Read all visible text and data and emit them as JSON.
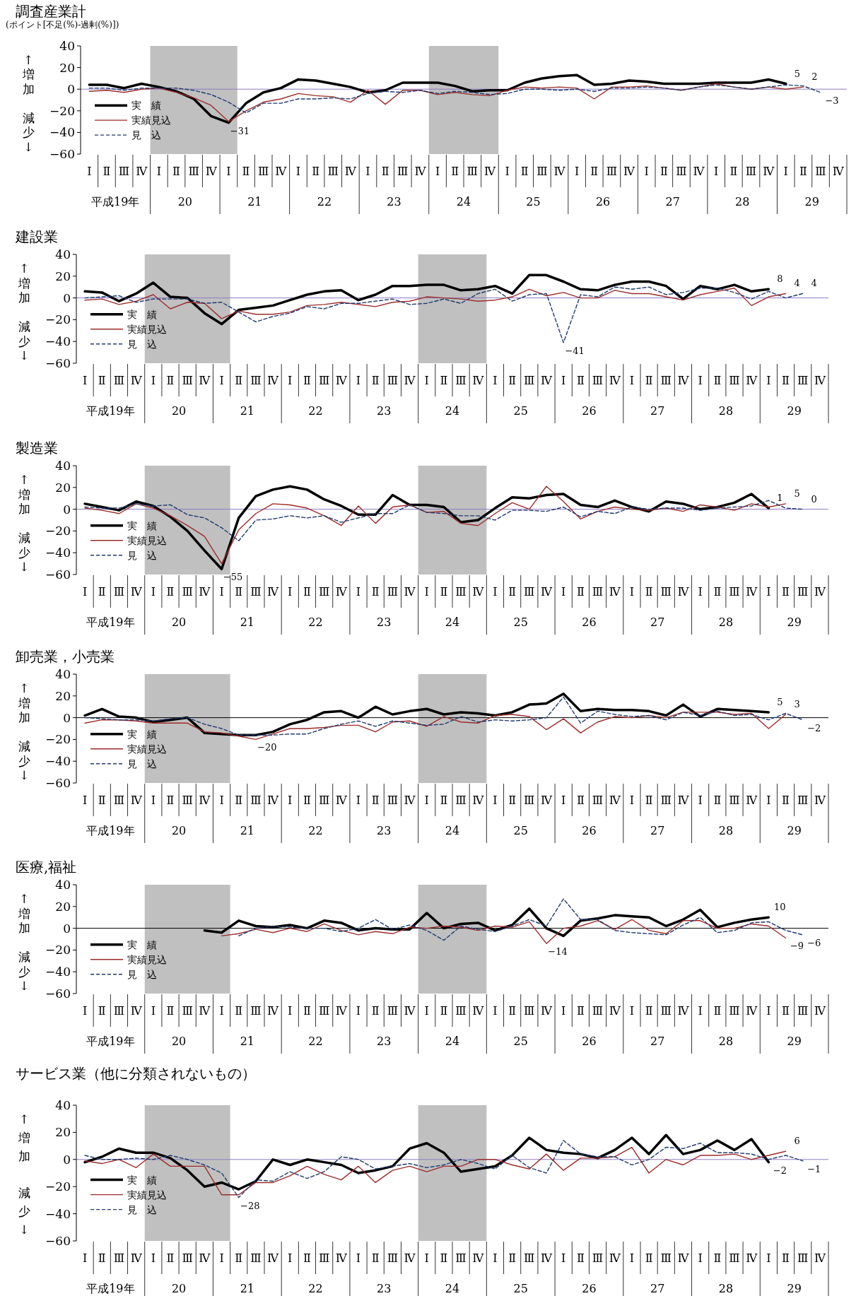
{
  "chart_data": [
    {
      "type": "line",
      "title": "調査産業計",
      "subtitle": "(ポイント[不足(%)-過剰(%)])",
      "ylabel": "↑増加減少↓",
      "categories": [
        "Ⅰ",
        "Ⅱ",
        "Ⅲ",
        "Ⅳ",
        "Ⅰ",
        "Ⅱ",
        "Ⅲ",
        "Ⅳ",
        "Ⅰ",
        "Ⅱ",
        "Ⅲ",
        "Ⅳ",
        "Ⅰ",
        "Ⅱ",
        "Ⅲ",
        "Ⅳ",
        "Ⅰ",
        "Ⅱ",
        "Ⅲ",
        "Ⅳ",
        "Ⅰ",
        "Ⅱ",
        "Ⅲ",
        "Ⅳ",
        "Ⅰ",
        "Ⅱ",
        "Ⅲ",
        "Ⅳ",
        "Ⅰ",
        "Ⅱ",
        "Ⅲ",
        "Ⅳ",
        "Ⅰ",
        "Ⅱ",
        "Ⅲ",
        "Ⅳ",
        "Ⅰ",
        "Ⅱ",
        "Ⅲ",
        "Ⅳ",
        "Ⅰ",
        "Ⅱ",
        "Ⅲ",
        "Ⅳ"
      ],
      "annotations": [
        "平成19年",
        "20",
        "21",
        "22",
        "23",
        "24",
        "25",
        "26",
        "27",
        "28",
        "29"
      ],
      "ylim": [
        -60,
        40
      ],
      "yticks": [
        -60,
        -40,
        -20,
        0,
        20,
        40
      ],
      "legend": "bottom left",
      "ref_lines": [
        {
          "axis": "y",
          "value": 0,
          "color": "#8e7cc3"
        }
      ],
      "series": [
        {
          "name": "実　績",
          "color": "#000000",
          "line_style": "solid",
          "values": [
            4,
            4,
            1,
            5,
            2,
            -2,
            -9,
            -25,
            -31,
            -13,
            -3,
            1,
            9,
            8,
            5,
            2,
            -3,
            -1,
            6,
            6,
            6,
            3,
            -2,
            -1,
            -1,
            6,
            10,
            12,
            13,
            4,
            5,
            8,
            7,
            5,
            5,
            5,
            6,
            6,
            6,
            9,
            5,
            null,
            null,
            null
          ],
          "value_labels": [
            null,
            null,
            null,
            null,
            null,
            null,
            null,
            null,
            "−31",
            null,
            null,
            null,
            null,
            null,
            null,
            null,
            null,
            null,
            null,
            null,
            null,
            null,
            null,
            null,
            null,
            null,
            null,
            null,
            null,
            null,
            null,
            null,
            null,
            null,
            null,
            null,
            null,
            null,
            null,
            null,
            "5",
            null,
            null,
            null
          ]
        },
        {
          "name": "実績見込",
          "color": "#9b2d2a",
          "line_style": "solid",
          "values": [
            -2,
            -1,
            -3,
            0,
            1,
            -3,
            -8,
            -15,
            -30,
            -20,
            -12,
            -9,
            -4,
            -6,
            -7,
            -12,
            -1,
            -14,
            -1,
            -1,
            -5,
            -3,
            -5,
            -6,
            -1,
            2,
            1,
            2,
            1,
            -9,
            2,
            2,
            3,
            1,
            -1,
            2,
            5,
            2,
            0,
            2,
            0,
            2,
            null,
            null
          ],
          "value_labels": [
            null,
            null,
            null,
            null,
            null,
            null,
            null,
            null,
            null,
            null,
            null,
            null,
            null,
            null,
            null,
            null,
            null,
            null,
            null,
            null,
            null,
            null,
            null,
            null,
            null,
            null,
            null,
            null,
            null,
            null,
            null,
            null,
            null,
            null,
            null,
            null,
            null,
            null,
            null,
            null,
            null,
            "2",
            null,
            null
          ]
        },
        {
          "name": "見　込",
          "color": "#1f3a6e",
          "line_style": "dashed",
          "values": [
            1,
            1,
            -1,
            1,
            1,
            1,
            -1,
            -5,
            -12,
            -22,
            -13,
            -13,
            -9,
            -9,
            -8,
            -9,
            -4,
            -2,
            -3,
            -1,
            -4,
            -2,
            -3,
            -5,
            -4,
            0,
            0,
            -1,
            0,
            -2,
            1,
            1,
            2,
            1,
            -1,
            2,
            4,
            2,
            0,
            2,
            4,
            3,
            -3,
            null
          ],
          "value_labels": [
            null,
            null,
            null,
            null,
            null,
            null,
            null,
            null,
            null,
            null,
            null,
            null,
            null,
            null,
            null,
            null,
            null,
            null,
            null,
            null,
            null,
            null,
            null,
            null,
            null,
            null,
            null,
            null,
            null,
            null,
            null,
            null,
            null,
            null,
            null,
            null,
            null,
            null,
            null,
            null,
            null,
            null,
            "−3",
            null
          ]
        }
      ]
    },
    {
      "type": "line",
      "title": "建設業",
      "ylabel": "↑増加減少↓",
      "categories": [
        "Ⅰ",
        "Ⅱ",
        "Ⅲ",
        "Ⅳ",
        "Ⅰ",
        "Ⅱ",
        "Ⅲ",
        "Ⅳ",
        "Ⅰ",
        "Ⅱ",
        "Ⅲ",
        "Ⅳ",
        "Ⅰ",
        "Ⅱ",
        "Ⅲ",
        "Ⅳ",
        "Ⅰ",
        "Ⅱ",
        "Ⅲ",
        "Ⅳ",
        "Ⅰ",
        "Ⅱ",
        "Ⅲ",
        "Ⅳ",
        "Ⅰ",
        "Ⅱ",
        "Ⅲ",
        "Ⅳ",
        "Ⅰ",
        "Ⅱ",
        "Ⅲ",
        "Ⅳ",
        "Ⅰ",
        "Ⅱ",
        "Ⅲ",
        "Ⅳ",
        "Ⅰ",
        "Ⅱ",
        "Ⅲ",
        "Ⅳ",
        "Ⅰ",
        "Ⅱ",
        "Ⅲ",
        "Ⅳ"
      ],
      "annotations": [
        "平成19年",
        "20",
        "21",
        "22",
        "23",
        "24",
        "25",
        "26",
        "27",
        "28",
        "29"
      ],
      "ylim": [
        -60,
        40
      ],
      "yticks": [
        -60,
        -40,
        -20,
        0,
        20,
        40
      ],
      "legend": "bottom left",
      "ref_lines": [
        {
          "axis": "y",
          "value": 0,
          "color": "#8e7cc3"
        }
      ],
      "series": [
        {
          "name": "実　績",
          "color": "#000000",
          "line_style": "solid",
          "values": [
            6,
            5,
            -3,
            4,
            14,
            1,
            0,
            -14,
            -24,
            -11,
            -9,
            -7,
            -2,
            3,
            6,
            7,
            -2,
            3,
            11,
            11,
            12,
            12,
            7,
            8,
            11,
            4,
            21,
            21,
            15,
            8,
            7,
            12,
            15,
            15,
            11,
            -1,
            11,
            8,
            12,
            6,
            8,
            null,
            null,
            null
          ],
          "value_labels": [
            null,
            null,
            null,
            null,
            null,
            null,
            null,
            null,
            null,
            null,
            null,
            null,
            null,
            null,
            null,
            null,
            null,
            null,
            null,
            null,
            null,
            null,
            null,
            null,
            null,
            null,
            null,
            null,
            null,
            null,
            null,
            null,
            null,
            null,
            null,
            null,
            null,
            null,
            null,
            null,
            "8",
            null,
            null,
            null
          ]
        },
        {
          "name": "実績見込",
          "color": "#9b2d2a",
          "line_style": "solid",
          "values": [
            -2,
            -1,
            -6,
            -3,
            3,
            -10,
            -4,
            -5,
            -19,
            -12,
            -15,
            -15,
            -13,
            -7,
            -6,
            -4,
            -6,
            -8,
            -4,
            -3,
            1,
            0,
            -1,
            -3,
            -2,
            1,
            8,
            2,
            5,
            0,
            0,
            7,
            4,
            4,
            1,
            -2,
            3,
            6,
            9,
            -7,
            1,
            4,
            null,
            null
          ],
          "value_labels": [
            null,
            null,
            null,
            null,
            null,
            null,
            null,
            null,
            null,
            null,
            null,
            null,
            null,
            null,
            null,
            null,
            null,
            null,
            null,
            null,
            null,
            null,
            null,
            null,
            null,
            null,
            null,
            null,
            null,
            null,
            null,
            null,
            null,
            null,
            null,
            null,
            null,
            null,
            null,
            null,
            null,
            "4",
            null,
            null
          ]
        },
        {
          "name": "見　込",
          "color": "#1f3a6e",
          "line_style": "dashed",
          "values": [
            0,
            1,
            2,
            -4,
            -1,
            -1,
            -1,
            -5,
            -4,
            -13,
            -22,
            -17,
            -14,
            -8,
            -10,
            -5,
            -5,
            -3,
            -1,
            -6,
            -5,
            -1,
            -5,
            4,
            8,
            -3,
            3,
            4,
            -41,
            3,
            1,
            10,
            8,
            10,
            3,
            5,
            9,
            9,
            5,
            -1,
            6,
            0,
            4,
            null
          ],
          "value_labels": [
            null,
            null,
            null,
            null,
            null,
            null,
            null,
            null,
            null,
            null,
            null,
            null,
            null,
            null,
            null,
            null,
            null,
            null,
            null,
            null,
            null,
            null,
            null,
            null,
            null,
            null,
            null,
            null,
            "−41",
            null,
            null,
            null,
            null,
            null,
            null,
            null,
            null,
            null,
            null,
            null,
            null,
            null,
            "4",
            null
          ]
        }
      ]
    },
    {
      "type": "line",
      "title": "製造業",
      "ylabel": "↑増加減少↓",
      "categories": [
        "Ⅰ",
        "Ⅱ",
        "Ⅲ",
        "Ⅳ",
        "Ⅰ",
        "Ⅱ",
        "Ⅲ",
        "Ⅳ",
        "Ⅰ",
        "Ⅱ",
        "Ⅲ",
        "Ⅳ",
        "Ⅰ",
        "Ⅱ",
        "Ⅲ",
        "Ⅳ",
        "Ⅰ",
        "Ⅱ",
        "Ⅲ",
        "Ⅳ",
        "Ⅰ",
        "Ⅱ",
        "Ⅲ",
        "Ⅳ",
        "Ⅰ",
        "Ⅱ",
        "Ⅲ",
        "Ⅳ",
        "Ⅰ",
        "Ⅱ",
        "Ⅲ",
        "Ⅳ",
        "Ⅰ",
        "Ⅱ",
        "Ⅲ",
        "Ⅳ",
        "Ⅰ",
        "Ⅱ",
        "Ⅲ",
        "Ⅳ",
        "Ⅰ",
        "Ⅱ",
        "Ⅲ",
        "Ⅳ"
      ],
      "annotations": [
        "平成19年",
        "20",
        "21",
        "22",
        "23",
        "24",
        "25",
        "26",
        "27",
        "28",
        "29"
      ],
      "ylim": [
        -60,
        40
      ],
      "yticks": [
        -60,
        -40,
        -20,
        0,
        20,
        40
      ],
      "legend": "bottom left",
      "ref_lines": [
        {
          "axis": "y",
          "value": 0,
          "color": "#8e7cc3"
        }
      ],
      "series": [
        {
          "name": "実　績",
          "color": "#000000",
          "line_style": "solid",
          "values": [
            5,
            2,
            -1,
            7,
            3,
            -7,
            -20,
            -38,
            -55,
            -8,
            12,
            18,
            21,
            18,
            9,
            3,
            -5,
            -5,
            13,
            4,
            4,
            2,
            -12,
            -10,
            1,
            11,
            10,
            13,
            14,
            4,
            2,
            8,
            2,
            -2,
            7,
            5,
            0,
            2,
            6,
            14,
            1,
            null,
            null,
            null
          ],
          "value_labels": [
            null,
            null,
            null,
            null,
            null,
            null,
            null,
            null,
            "−55",
            null,
            null,
            null,
            null,
            null,
            null,
            null,
            null,
            null,
            null,
            null,
            null,
            null,
            null,
            null,
            null,
            null,
            null,
            null,
            null,
            null,
            null,
            null,
            null,
            null,
            null,
            null,
            null,
            null,
            null,
            null,
            "1",
            null,
            null,
            null
          ]
        },
        {
          "name": "実績見込",
          "color": "#9b2d2a",
          "line_style": "solid",
          "values": [
            1,
            -1,
            -4,
            5,
            1,
            -6,
            -15,
            -25,
            -50,
            -19,
            -4,
            5,
            4,
            1,
            -6,
            -15,
            3,
            -13,
            2,
            4,
            -3,
            -2,
            -13,
            -15,
            -4,
            6,
            0,
            21,
            7,
            -9,
            -2,
            2,
            0,
            -1,
            1,
            -2,
            4,
            2,
            -1,
            5,
            2,
            5,
            null,
            null
          ],
          "value_labels": [
            null,
            null,
            null,
            null,
            null,
            null,
            null,
            null,
            null,
            null,
            null,
            null,
            null,
            null,
            null,
            null,
            null,
            null,
            null,
            null,
            null,
            null,
            null,
            null,
            null,
            null,
            null,
            null,
            null,
            null,
            null,
            null,
            null,
            null,
            null,
            null,
            null,
            null,
            null,
            null,
            null,
            "5",
            null,
            null
          ]
        },
        {
          "name": "見　込",
          "color": "#1f3a6e",
          "line_style": "dashed",
          "values": [
            2,
            1,
            1,
            5,
            3,
            4,
            -5,
            -8,
            -17,
            -29,
            -10,
            -9,
            -6,
            -8,
            -6,
            -12,
            -8,
            -4,
            -4,
            4,
            -3,
            -4,
            -6,
            -6,
            -10,
            -1,
            -1,
            -2,
            2,
            -7,
            -2,
            -4,
            2,
            0,
            1,
            1,
            -1,
            1,
            2,
            3,
            8,
            1,
            0,
            null
          ],
          "value_labels": [
            null,
            null,
            null,
            null,
            null,
            null,
            null,
            null,
            null,
            null,
            null,
            null,
            null,
            null,
            null,
            null,
            null,
            null,
            null,
            null,
            null,
            null,
            null,
            null,
            null,
            null,
            null,
            null,
            null,
            null,
            null,
            null,
            null,
            null,
            null,
            null,
            null,
            null,
            null,
            null,
            null,
            null,
            "0",
            null
          ]
        }
      ]
    },
    {
      "type": "line",
      "title": "卸売業，小売業",
      "ylabel": "↑増加減少↓",
      "categories": [
        "Ⅰ",
        "Ⅱ",
        "Ⅲ",
        "Ⅳ",
        "Ⅰ",
        "Ⅱ",
        "Ⅲ",
        "Ⅳ",
        "Ⅰ",
        "Ⅱ",
        "Ⅲ",
        "Ⅳ",
        "Ⅰ",
        "Ⅱ",
        "Ⅲ",
        "Ⅳ",
        "Ⅰ",
        "Ⅱ",
        "Ⅲ",
        "Ⅳ",
        "Ⅰ",
        "Ⅱ",
        "Ⅲ",
        "Ⅳ",
        "Ⅰ",
        "Ⅱ",
        "Ⅲ",
        "Ⅳ",
        "Ⅰ",
        "Ⅱ",
        "Ⅲ",
        "Ⅳ",
        "Ⅰ",
        "Ⅱ",
        "Ⅲ",
        "Ⅳ",
        "Ⅰ",
        "Ⅱ",
        "Ⅲ",
        "Ⅳ",
        "Ⅰ",
        "Ⅱ",
        "Ⅲ",
        "Ⅳ"
      ],
      "annotations": [
        "平成19年",
        "20",
        "21",
        "22",
        "23",
        "24",
        "25",
        "26",
        "27",
        "28",
        "29"
      ],
      "ylim": [
        -60,
        40
      ],
      "yticks": [
        -60,
        -40,
        -20,
        0,
        20,
        40
      ],
      "legend": "bottom left",
      "ref_lines": [
        {
          "axis": "y",
          "value": 0,
          "color": "#000000"
        }
      ],
      "series": [
        {
          "name": "実　績",
          "color": "#000000",
          "line_style": "solid",
          "values": [
            2,
            8,
            1,
            0,
            -4,
            -2,
            0,
            -14,
            -15,
            -16,
            -16,
            -13,
            -6,
            -2,
            5,
            6,
            0,
            10,
            3,
            6,
            8,
            3,
            5,
            4,
            2,
            5,
            12,
            13,
            22,
            6,
            8,
            7,
            7,
            6,
            2,
            12,
            1,
            8,
            7,
            6,
            5,
            null,
            null,
            null
          ],
          "value_labels": [
            null,
            null,
            null,
            null,
            null,
            null,
            null,
            null,
            null,
            null,
            null,
            null,
            null,
            null,
            null,
            null,
            null,
            null,
            null,
            null,
            null,
            null,
            null,
            null,
            null,
            null,
            null,
            null,
            null,
            null,
            null,
            null,
            null,
            null,
            null,
            null,
            null,
            null,
            null,
            null,
            "5",
            null,
            null,
            null
          ]
        },
        {
          "name": "実績見込",
          "color": "#9b2d2a",
          "line_style": "solid",
          "values": [
            -5,
            -2,
            -2,
            -3,
            -5,
            -5,
            -5,
            -13,
            -14,
            -17,
            -20,
            -15,
            -10,
            -10,
            -9,
            -7,
            -7,
            -13,
            -4,
            -3,
            -8,
            1,
            -4,
            -5,
            2,
            3,
            1,
            -11,
            -1,
            -14,
            -4,
            1,
            0,
            2,
            0,
            5,
            5,
            5,
            3,
            4,
            -10,
            3,
            null,
            null
          ],
          "value_labels": [
            null,
            null,
            null,
            null,
            null,
            null,
            null,
            null,
            null,
            null,
            "−20",
            null,
            null,
            null,
            null,
            null,
            null,
            null,
            null,
            null,
            null,
            null,
            null,
            null,
            null,
            null,
            null,
            null,
            null,
            null,
            null,
            null,
            null,
            null,
            null,
            null,
            null,
            null,
            null,
            null,
            null,
            "3",
            null,
            null
          ]
        },
        {
          "name": "見　込",
          "color": "#1f3a6e",
          "line_style": "dashed",
          "values": [
            0,
            -1,
            -2,
            -2,
            -3,
            -1,
            0,
            -6,
            -10,
            -16,
            -16,
            -16,
            -15,
            -15,
            -10,
            -6,
            -3,
            -8,
            -3,
            -5,
            -7,
            -6,
            1,
            -4,
            -2,
            -3,
            -2,
            0,
            19,
            -5,
            6,
            3,
            1,
            2,
            -2,
            5,
            2,
            6,
            2,
            3,
            -2,
            4,
            -2,
            null
          ],
          "value_labels": [
            null,
            null,
            null,
            null,
            null,
            null,
            null,
            null,
            null,
            null,
            null,
            null,
            null,
            null,
            null,
            null,
            null,
            null,
            null,
            null,
            null,
            null,
            null,
            null,
            null,
            null,
            null,
            null,
            null,
            null,
            null,
            null,
            null,
            null,
            null,
            null,
            null,
            null,
            null,
            null,
            null,
            null,
            "−2",
            null
          ]
        }
      ]
    },
    {
      "type": "line",
      "title": "医療,福祉",
      "ylabel": "↑増加減少↓",
      "categories": [
        "Ⅰ",
        "Ⅱ",
        "Ⅲ",
        "Ⅳ",
        "Ⅰ",
        "Ⅱ",
        "Ⅲ",
        "Ⅳ",
        "Ⅰ",
        "Ⅱ",
        "Ⅲ",
        "Ⅳ",
        "Ⅰ",
        "Ⅱ",
        "Ⅲ",
        "Ⅳ",
        "Ⅰ",
        "Ⅱ",
        "Ⅲ",
        "Ⅳ",
        "Ⅰ",
        "Ⅱ",
        "Ⅲ",
        "Ⅳ",
        "Ⅰ",
        "Ⅱ",
        "Ⅲ",
        "Ⅳ",
        "Ⅰ",
        "Ⅱ",
        "Ⅲ",
        "Ⅳ",
        "Ⅰ",
        "Ⅱ",
        "Ⅲ",
        "Ⅳ",
        "Ⅰ",
        "Ⅱ",
        "Ⅲ",
        "Ⅳ",
        "Ⅰ",
        "Ⅱ",
        "Ⅲ",
        "Ⅳ"
      ],
      "annotations": [
        "平成19年",
        "20",
        "21",
        "22",
        "23",
        "24",
        "25",
        "26",
        "27",
        "28",
        "29"
      ],
      "ylim": [
        -60,
        40
      ],
      "yticks": [
        -60,
        -40,
        -20,
        0,
        20,
        40
      ],
      "legend": "bottom left",
      "ref_lines": [
        {
          "axis": "y",
          "value": 0,
          "color": "#000000"
        }
      ],
      "series": [
        {
          "name": "実　績",
          "color": "#000000",
          "line_style": "solid",
          "values": [
            null,
            null,
            null,
            null,
            null,
            null,
            null,
            -2,
            -4,
            7,
            2,
            1,
            3,
            0,
            7,
            5,
            -2,
            0,
            -1,
            -1,
            14,
            0,
            4,
            5,
            -2,
            3,
            18,
            0,
            -7,
            7,
            9,
            12,
            11,
            10,
            2,
            8,
            17,
            1,
            5,
            8,
            10,
            null,
            null,
            null
          ],
          "value_labels": [
            null,
            null,
            null,
            null,
            null,
            null,
            null,
            null,
            null,
            null,
            null,
            null,
            null,
            null,
            null,
            null,
            null,
            null,
            null,
            null,
            null,
            null,
            null,
            null,
            null,
            null,
            null,
            null,
            null,
            null,
            null,
            null,
            null,
            null,
            null,
            null,
            null,
            null,
            null,
            null,
            "10",
            null,
            null,
            null
          ]
        },
        {
          "name": "実績見込",
          "color": "#9b2d2a",
          "line_style": "solid",
          "values": [
            null,
            null,
            null,
            null,
            null,
            null,
            null,
            null,
            -7,
            -5,
            -1,
            -4,
            0,
            -3,
            4,
            -2,
            -6,
            -3,
            -5,
            1,
            0,
            2,
            1,
            -2,
            2,
            1,
            6,
            -14,
            0,
            2,
            7,
            -1,
            8,
            -2,
            -5,
            7,
            7,
            0,
            0,
            4,
            2,
            -9,
            null,
            null
          ],
          "value_labels": [
            null,
            null,
            null,
            null,
            null,
            null,
            null,
            null,
            null,
            null,
            null,
            null,
            null,
            null,
            null,
            null,
            null,
            null,
            null,
            null,
            null,
            null,
            null,
            null,
            null,
            null,
            null,
            "−14",
            null,
            null,
            null,
            null,
            null,
            null,
            null,
            null,
            null,
            null,
            null,
            null,
            null,
            "−9",
            null,
            null
          ]
        },
        {
          "name": "見　込",
          "color": "#1f3a6e",
          "line_style": "dashed",
          "values": [
            null,
            null,
            null,
            null,
            null,
            null,
            null,
            null,
            null,
            -7,
            0,
            2,
            1,
            0,
            0,
            -3,
            0,
            8,
            -1,
            3,
            -2,
            -11,
            2,
            -1,
            -3,
            2,
            8,
            2,
            27,
            8,
            8,
            -2,
            -4,
            -5,
            -6,
            3,
            10,
            -4,
            -2,
            5,
            6,
            -2,
            -6,
            null
          ],
          "value_labels": [
            null,
            null,
            null,
            null,
            null,
            null,
            null,
            null,
            null,
            null,
            null,
            null,
            null,
            null,
            null,
            null,
            null,
            null,
            null,
            null,
            null,
            null,
            null,
            null,
            null,
            null,
            null,
            null,
            null,
            null,
            null,
            null,
            null,
            null,
            null,
            null,
            null,
            null,
            null,
            null,
            null,
            null,
            "−6",
            null
          ]
        }
      ]
    },
    {
      "type": "line",
      "title": "サービス業（他に分類されないもの）",
      "ylabel": "↑増加減少↓",
      "categories": [
        "Ⅰ",
        "Ⅱ",
        "Ⅲ",
        "Ⅳ",
        "Ⅰ",
        "Ⅱ",
        "Ⅲ",
        "Ⅳ",
        "Ⅰ",
        "Ⅱ",
        "Ⅲ",
        "Ⅳ",
        "Ⅰ",
        "Ⅱ",
        "Ⅲ",
        "Ⅳ",
        "Ⅰ",
        "Ⅱ",
        "Ⅲ",
        "Ⅳ",
        "Ⅰ",
        "Ⅱ",
        "Ⅲ",
        "Ⅳ",
        "Ⅰ",
        "Ⅱ",
        "Ⅲ",
        "Ⅳ",
        "Ⅰ",
        "Ⅱ",
        "Ⅲ",
        "Ⅳ",
        "Ⅰ",
        "Ⅱ",
        "Ⅲ",
        "Ⅳ",
        "Ⅰ",
        "Ⅱ",
        "Ⅲ",
        "Ⅳ",
        "Ⅰ",
        "Ⅱ",
        "Ⅲ",
        "Ⅳ"
      ],
      "annotations": [
        "平成19年",
        "20",
        "21",
        "22",
        "23",
        "24",
        "25",
        "26",
        "27",
        "28",
        "29"
      ],
      "ylim": [
        -60,
        40
      ],
      "yticks": [
        -60,
        -40,
        -20,
        0,
        20,
        40
      ],
      "legend": "bottom left",
      "ref_lines": [
        {
          "axis": "y",
          "value": 0,
          "color": "#8e7cc3"
        }
      ],
      "series": [
        {
          "name": "実　績",
          "color": "#000000",
          "line_style": "solid",
          "values": [
            -2,
            2,
            8,
            5,
            5,
            1,
            -8,
            -20,
            -17,
            -22,
            -16,
            0,
            -4,
            0,
            -2,
            -4,
            -10,
            -8,
            -5,
            8,
            12,
            5,
            -9,
            -7,
            -5,
            3,
            16,
            7,
            5,
            4,
            1,
            7,
            16,
            4,
            18,
            4,
            7,
            14,
            7,
            15,
            -2,
            null,
            null,
            null
          ],
          "value_labels": [
            null,
            null,
            null,
            null,
            null,
            null,
            null,
            null,
            null,
            null,
            null,
            null,
            null,
            null,
            null,
            null,
            null,
            null,
            null,
            null,
            null,
            null,
            null,
            null,
            null,
            null,
            null,
            null,
            null,
            null,
            null,
            null,
            null,
            null,
            null,
            null,
            null,
            null,
            null,
            null,
            "−2",
            null,
            null,
            null
          ]
        },
        {
          "name": "実績見込",
          "color": "#9b2d2a",
          "line_style": "solid",
          "values": [
            -1,
            -3,
            0,
            -6,
            4,
            -5,
            -5,
            -5,
            -26,
            -26,
            -17,
            -17,
            -12,
            -5,
            -11,
            -15,
            -5,
            -17,
            -8,
            -5,
            -9,
            -5,
            -5,
            0,
            0,
            -4,
            -7,
            4,
            -8,
            1,
            1,
            2,
            9,
            -10,
            0,
            -4,
            3,
            3,
            4,
            0,
            3,
            6,
            null,
            null
          ],
          "value_labels": [
            null,
            null,
            null,
            null,
            null,
            null,
            null,
            null,
            null,
            null,
            null,
            null,
            null,
            null,
            null,
            null,
            null,
            null,
            null,
            null,
            null,
            null,
            null,
            null,
            null,
            null,
            null,
            null,
            null,
            null,
            null,
            null,
            null,
            null,
            null,
            null,
            null,
            null,
            null,
            null,
            null,
            "6",
            null,
            null
          ]
        },
        {
          "name": "見　込",
          "color": "#1f3a6e",
          "line_style": "dashed",
          "values": [
            3,
            0,
            0,
            1,
            0,
            3,
            0,
            -4,
            -10,
            -28,
            -15,
            -16,
            -9,
            -14,
            -9,
            2,
            0,
            -7,
            -5,
            -3,
            -6,
            -4,
            0,
            -3,
            -7,
            3,
            -6,
            -10,
            14,
            4,
            2,
            2,
            -4,
            0,
            9,
            8,
            12,
            5,
            5,
            4,
            0,
            3,
            -1,
            null
          ],
          "value_labels": [
            null,
            null,
            null,
            null,
            null,
            null,
            null,
            null,
            null,
            "−28",
            null,
            null,
            null,
            null,
            null,
            null,
            null,
            null,
            null,
            null,
            null,
            null,
            null,
            null,
            null,
            null,
            null,
            null,
            null,
            null,
            null,
            null,
            null,
            null,
            null,
            null,
            null,
            null,
            null,
            null,
            null,
            null,
            "−1",
            null
          ]
        }
      ]
    }
  ]
}
